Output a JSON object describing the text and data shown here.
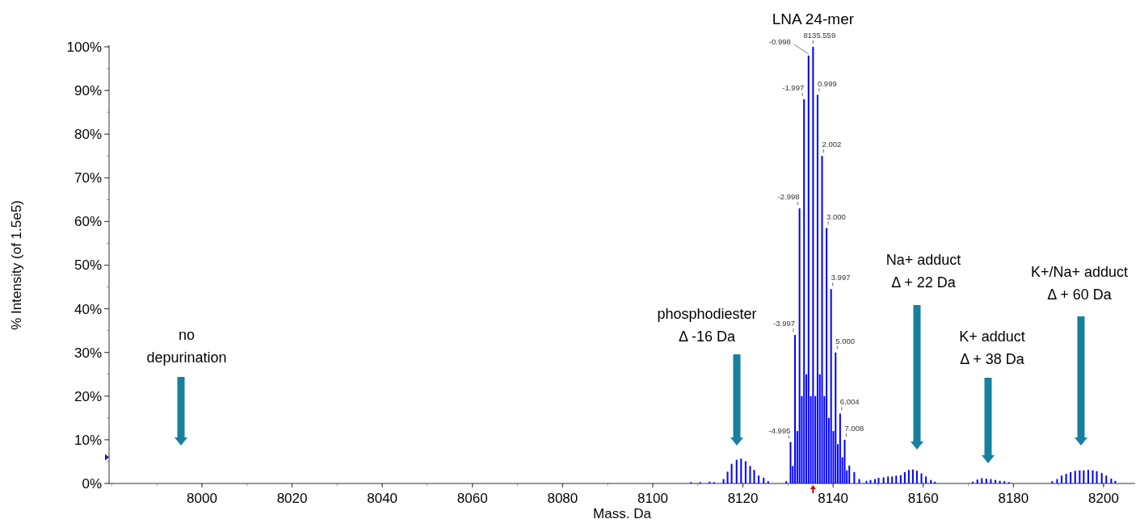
{
  "chart_data": {
    "type": "bar",
    "title": "LNA 24-mer",
    "xlabel": "Mass. Da",
    "ylabel": "% Intensity (of 1.5e5)",
    "x": [
      8108.5,
      8110.5,
      8112.6,
      8113.6,
      8115.7,
      8116.6,
      8117.5,
      8118.6,
      8119.6,
      8120.6,
      8121.6,
      8122.5,
      8123.5,
      8124.6,
      8125.6,
      8129.6,
      8130.56,
      8131.06,
      8131.56,
      8132.06,
      8132.56,
      8133.06,
      8133.56,
      8134.06,
      8134.56,
      8135.06,
      8135.56,
      8136.06,
      8136.56,
      8137.06,
      8137.56,
      8138.06,
      8138.56,
      8139.06,
      8139.56,
      8140.06,
      8140.56,
      8141.06,
      8141.56,
      8142.06,
      8142.57,
      8143.06,
      8143.6,
      8144.7,
      8145.8,
      8147.4,
      8148.3,
      8149.3,
      8150.1,
      8151.2,
      8152.2,
      8153.1,
      8154,
      8155,
      8155.9,
      8156.8,
      8157.7,
      8158.6,
      8159.6,
      8160.6,
      8161.7,
      8162.6,
      8171,
      8172,
      8173,
      8174,
      8175,
      8176,
      8177,
      8178,
      8179,
      8188.6,
      8189.7,
      8190.7,
      8191.7,
      8192.7,
      8193.7,
      8194.7,
      8195.6,
      8196.6,
      8197.6,
      8198.5,
      8199.6,
      8200.6,
      8201.7,
      8202.6
    ],
    "values": [
      0.3,
      0.3,
      0.4,
      0.3,
      1,
      2.7,
      4.5,
      5.4,
      5.7,
      5.1,
      4,
      3.1,
      1.8,
      1.3,
      0.5,
      0.5,
      9.5,
      4,
      34,
      12,
      63,
      20,
      88,
      25,
      98,
      20,
      100,
      20,
      89,
      25,
      75,
      20,
      58.5,
      15,
      44.5,
      12,
      30,
      9,
      16,
      6,
      10,
      3,
      4.1,
      2.6,
      1,
      0.6,
      0.8,
      1,
      1.3,
      1.4,
      1.6,
      1.6,
      1.8,
      1.9,
      2.6,
      3.1,
      3.2,
      2.9,
      2.3,
      1.6,
      0.8,
      0.4,
      0.4,
      0.9,
      1.2,
      1.1,
      1,
      0.8,
      0.6,
      0.5,
      0.3,
      0.5,
      1,
      1.8,
      2.2,
      2.6,
      2.9,
      3,
      3,
      3.1,
      3,
      2.8,
      2.4,
      1.8,
      1.1,
      0.6
    ],
    "color": "#0000ff",
    "xlim": [
      7979.4,
      8207
    ],
    "xticks": [
      8000,
      8020,
      8040,
      8060,
      8080,
      8100,
      8120,
      8140,
      8160,
      8180,
      8200
    ],
    "ylim": [
      0,
      100
    ],
    "yticks": [
      {
        "value": 0,
        "label": "0%"
      },
      {
        "value": 10,
        "label": "10%"
      },
      {
        "value": 20,
        "label": "20%"
      },
      {
        "value": 30,
        "label": "30%"
      },
      {
        "value": 40,
        "label": "40%"
      },
      {
        "value": 50,
        "label": "50%"
      },
      {
        "value": 60,
        "label": "60%"
      },
      {
        "value": 70,
        "label": "70%"
      },
      {
        "value": 80,
        "label": "80%"
      },
      {
        "value": 90,
        "label": "90%"
      },
      {
        "value": 100,
        "label": "100%"
      }
    ],
    "annotations": [
      {
        "text": "-4.995",
        "x": 8130.56,
        "y": 9.5
      },
      {
        "text": "-3.997",
        "x": 8131.56,
        "y": 34
      },
      {
        "text": "-2.998",
        "x": 8132.56,
        "y": 63
      },
      {
        "text": "-1.997",
        "x": 8133.56,
        "y": 88
      },
      {
        "text": "-0.998",
        "x": 8134.56,
        "y": 98
      },
      {
        "text": "8135.559",
        "x": 8135.56,
        "y": 100
      },
      {
        "text": "0.999",
        "x": 8136.56,
        "y": 89
      },
      {
        "text": "2.002",
        "x": 8137.56,
        "y": 75
      },
      {
        "text": "3.000",
        "x": 8138.56,
        "y": 58.5
      },
      {
        "text": "3.997",
        "x": 8139.56,
        "y": 44.5
      },
      {
        "text": "5.000",
        "x": 8140.56,
        "y": 30
      },
      {
        "text": "6.004",
        "x": 8141.56,
        "y": 16
      },
      {
        "text": "7.008",
        "x": 8142.57,
        "y": 10
      },
      "no\ndepurination",
      "phosphodiester\nΔ -16 Da",
      "Na+ adduct\nΔ + 22 Da",
      "K+ adduct\nΔ + 38 Da",
      "K+/Na+ adduct\nΔ + 60 Da"
    ]
  }
}
